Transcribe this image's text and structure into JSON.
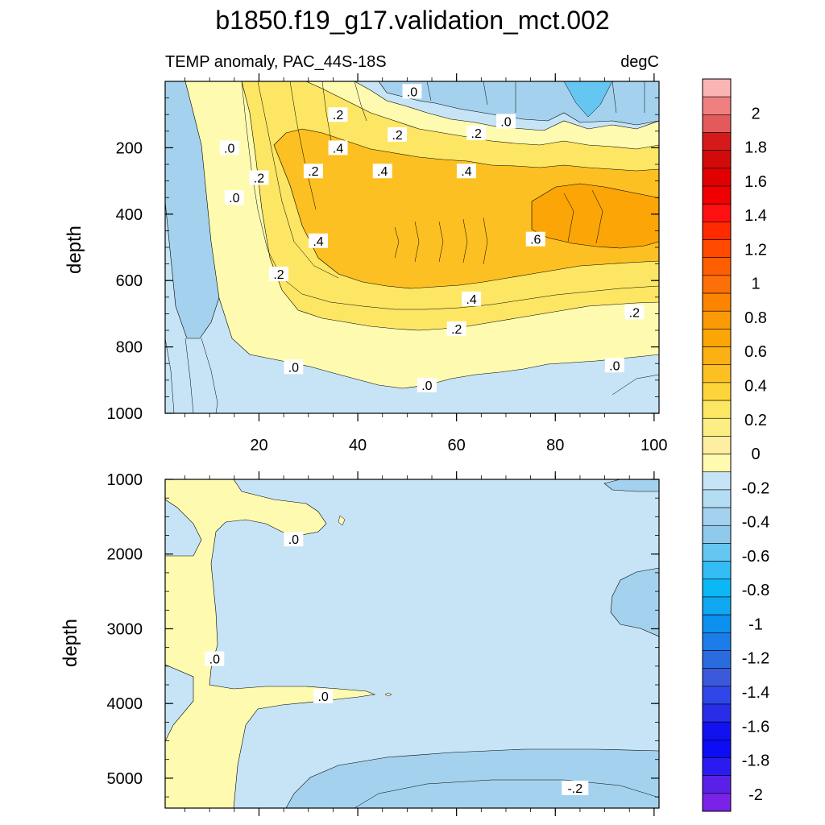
{
  "figure": {
    "title": "b1850.f19_g17.validation_mct.002",
    "subtitle_left": "TEMP anomaly, PAC_44S-18S",
    "subtitle_right": "degC"
  },
  "colors": {
    "pos_0_02": "#fefbb0",
    "pos_02_04": "#fde664",
    "pos_04_06": "#fdc022",
    "pos_06_08": "#fba507",
    "neg_0_m02": "#c6e4f5",
    "neg_m02_m04": "#a4d2ee",
    "line": "#000000"
  },
  "chart_data": [
    {
      "type": "heatmap",
      "panel": "upper",
      "title": "TEMP anomaly, PAC_44S-18S",
      "units": "degC",
      "xlabel": "",
      "ylabel": "depth",
      "xlim": [
        1,
        101
      ],
      "ylim": [
        1000,
        0
      ],
      "x_ticks": [
        20,
        40,
        60,
        80,
        100
      ],
      "y_ticks": [
        200,
        400,
        600,
        800,
        1000
      ],
      "contour_interval": 0.1,
      "contour_labels": [
        {
          "x": 51,
          "y": 30,
          "text": ".0"
        },
        {
          "x": 70,
          "y": 120,
          "text": ".0"
        },
        {
          "x": 36,
          "y": 100,
          "text": ".2"
        },
        {
          "x": 48,
          "y": 160,
          "text": ".2"
        },
        {
          "x": 64,
          "y": 155,
          "text": ".2"
        },
        {
          "x": 14,
          "y": 200,
          "text": ".0"
        },
        {
          "x": 36,
          "y": 200,
          "text": ".4"
        },
        {
          "x": 45,
          "y": 270,
          "text": ".4"
        },
        {
          "x": 31,
          "y": 270,
          "text": ".2"
        },
        {
          "x": 20,
          "y": 290,
          "text": ".2"
        },
        {
          "x": 62,
          "y": 270,
          "text": ".4"
        },
        {
          "x": 15,
          "y": 350,
          "text": ".0"
        },
        {
          "x": 32,
          "y": 480,
          "text": ".4"
        },
        {
          "x": 76,
          "y": 475,
          "text": ".6"
        },
        {
          "x": 24,
          "y": 580,
          "text": ".2"
        },
        {
          "x": 63,
          "y": 655,
          "text": ".4"
        },
        {
          "x": 60,
          "y": 745,
          "text": ".2"
        },
        {
          "x": 96,
          "y": 695,
          "text": ".2"
        },
        {
          "x": 27,
          "y": 860,
          "text": ".0"
        },
        {
          "x": 54,
          "y": 915,
          "text": ".0"
        },
        {
          "x": 92,
          "y": 855,
          "text": ".0"
        }
      ]
    },
    {
      "type": "heatmap",
      "panel": "lower",
      "title": "",
      "xlabel": "",
      "ylabel": "depth",
      "xlim": [
        1,
        101
      ],
      "ylim": [
        5400,
        1000
      ],
      "y_ticks": [
        1000,
        2000,
        3000,
        4000,
        5000
      ],
      "contour_interval": 0.1,
      "contour_labels": [
        {
          "x": 27,
          "y": 1800,
          "text": ".0"
        },
        {
          "x": 11,
          "y": 3400,
          "text": ".0"
        },
        {
          "x": 33,
          "y": 3900,
          "text": ".0"
        },
        {
          "x": 84,
          "y": 5130,
          "text": "-.2"
        }
      ]
    },
    {
      "type": "colorbar",
      "min": -2.1,
      "max": 2.2,
      "step": 0.1,
      "labels": [
        "2",
        "1.8",
        "1.6",
        "1.4",
        "1.2",
        "1",
        "0.8",
        "0.6",
        "0.4",
        "0.2",
        "0",
        "-0.2",
        "-0.4",
        "-0.6",
        "-0.8",
        "-1",
        "-1.2",
        "-1.4",
        "-1.6",
        "-1.8",
        "-2"
      ],
      "label_values": [
        2,
        1.8,
        1.6,
        1.4,
        1.2,
        1,
        0.8,
        0.6,
        0.4,
        0.2,
        0,
        -0.2,
        -0.4,
        -0.6,
        -0.8,
        -1,
        -1.2,
        -1.4,
        -1.6,
        -1.8,
        -2
      ],
      "colors_top_to_bottom": [
        "#fbb4b4",
        "#f08080",
        "#e35a5a",
        "#d61a1a",
        "#d20a0a",
        "#e00000",
        "#f00000",
        "#ff1010",
        "#ff2a00",
        "#ff4a00",
        "#ff5e00",
        "#fd6f08",
        "#fd8400",
        "#fb9a07",
        "#fba507",
        "#fbb014",
        "#fdc022",
        "#fdd53a",
        "#fde664",
        "#fdee84",
        "#feefa0",
        "#fefbb0",
        "#c6e4f5",
        "#b4dcf2",
        "#a4d2ee",
        "#8fc9ec",
        "#66c6f2",
        "#34bdf4",
        "#0cb7f6",
        "#10a8f0",
        "#0c90f0",
        "#1c7ce8",
        "#2a6be0",
        "#3a5adb",
        "#3046e8",
        "#2a2de8",
        "#1212f0",
        "#0c0cf5",
        "#2a1cf0",
        "#5a20e8",
        "#7a22e8"
      ]
    }
  ]
}
